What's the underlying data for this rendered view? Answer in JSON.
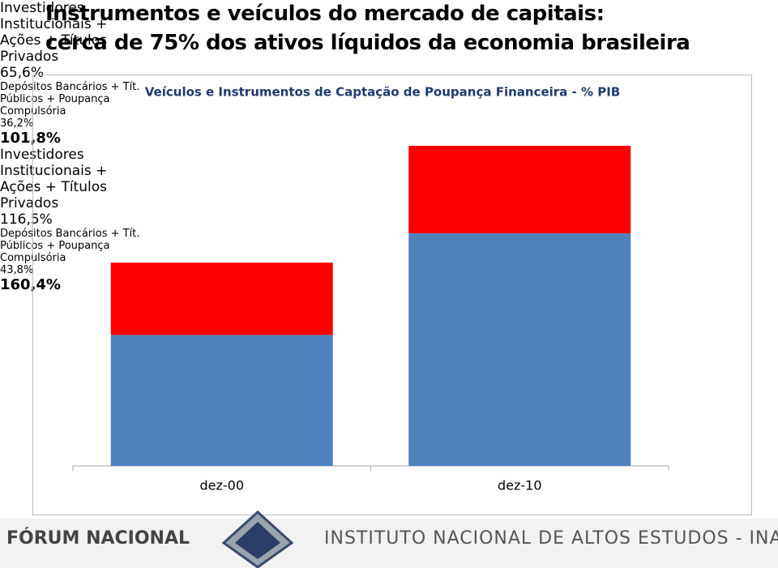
{
  "slide": {
    "title_lines": [
      "Instrumentos e veículos do mercado de capitais:",
      "cerca de 75% dos ativos líquidos da economia brasileira"
    ],
    "footer_left": "FÓRUM NACIONAL",
    "footer_right": "INSTITUTO NACIONAL DE ALTOS ESTUDOS - INAE"
  },
  "chart_data": {
    "type": "stacked_bar",
    "title": "Veículos e Instrumentos de Captação de Poupança Financeira - % PIB",
    "categories": [
      "dez-00",
      "dez-10"
    ],
    "ylim": [
      0,
      196
    ],
    "series": [
      {
        "name": "Investidores Institucionais + Ações + Títulos Privados",
        "color": "#4f81bd",
        "values": [
          65.6,
          116.5
        ],
        "value_labels": [
          "65,6%",
          "116,5%"
        ]
      },
      {
        "name": "Depósitos Bancários + Tít. Públicos + Poupança Compulsória",
        "color": "#ff0000",
        "values": [
          36.2,
          43.8
        ],
        "value_labels": [
          "36,2%",
          "43,8%"
        ]
      }
    ],
    "totals": [
      101.8,
      160.4
    ],
    "total_labels": [
      "101,8%",
      "160,4%"
    ]
  }
}
